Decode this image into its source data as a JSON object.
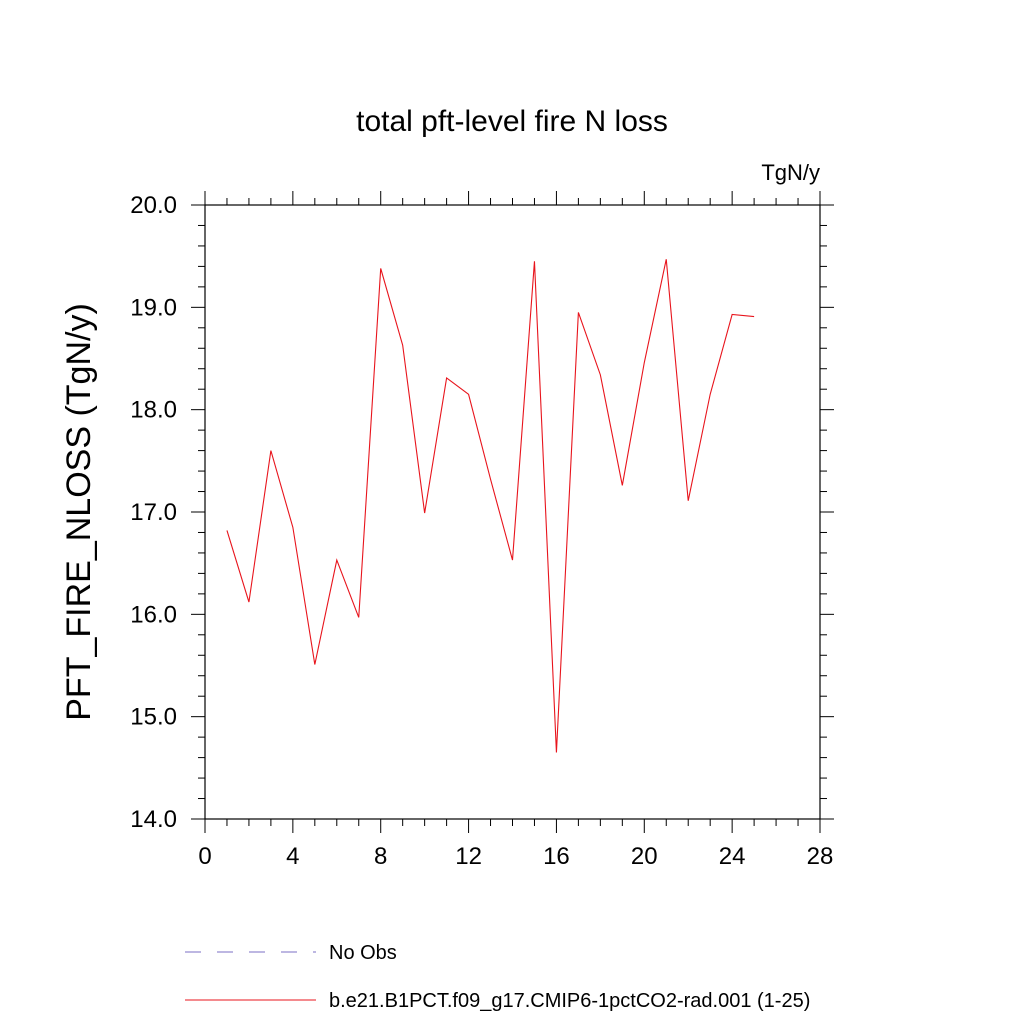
{
  "chart_data": {
    "type": "line",
    "title": "total pft-level fire N loss",
    "units": "TgN/y",
    "xlabel": "",
    "ylabel": "PFT_FIRE_NLOSS  (TgN/y)",
    "xlim": [
      0,
      28
    ],
    "ylim": [
      14.0,
      20.0
    ],
    "x_ticks": [
      0,
      4,
      8,
      12,
      16,
      20,
      24,
      28
    ],
    "x_tick_labels": [
      "0",
      "4",
      "8",
      "12",
      "16",
      "20",
      "24",
      "28"
    ],
    "y_ticks": [
      14.0,
      15.0,
      16.0,
      17.0,
      18.0,
      19.0,
      20.0
    ],
    "y_tick_labels": [
      "14.0",
      "15.0",
      "16.0",
      "17.0",
      "18.0",
      "19.0",
      "20.0"
    ],
    "grid": false,
    "legend_position": "bottom",
    "legend": [
      {
        "label": "No Obs",
        "color": "#7b6fc4",
        "style": "dashed"
      },
      {
        "label": "b.e21.B1PCT.f09_g17.CMIP6-1pctCO2-rad.001 (1-25)",
        "color": "#e8141c",
        "style": "solid"
      }
    ],
    "series": [
      {
        "name": "b.e21.B1PCT.f09_g17.CMIP6-1pctCO2-rad.001 (1-25)",
        "color": "#e8141c",
        "x": [
          1,
          2,
          3,
          4,
          5,
          6,
          7,
          8,
          9,
          10,
          11,
          12,
          13,
          14,
          15,
          16,
          17,
          18,
          19,
          20,
          21,
          22,
          23,
          24,
          25
        ],
        "y": [
          16.82,
          16.12,
          17.6,
          16.85,
          15.51,
          16.53,
          15.97,
          19.38,
          18.63,
          16.99,
          18.31,
          18.15,
          17.32,
          16.53,
          19.45,
          14.65,
          18.95,
          18.34,
          17.26,
          18.46,
          19.47,
          17.11,
          18.15,
          18.93,
          18.91
        ]
      }
    ]
  }
}
